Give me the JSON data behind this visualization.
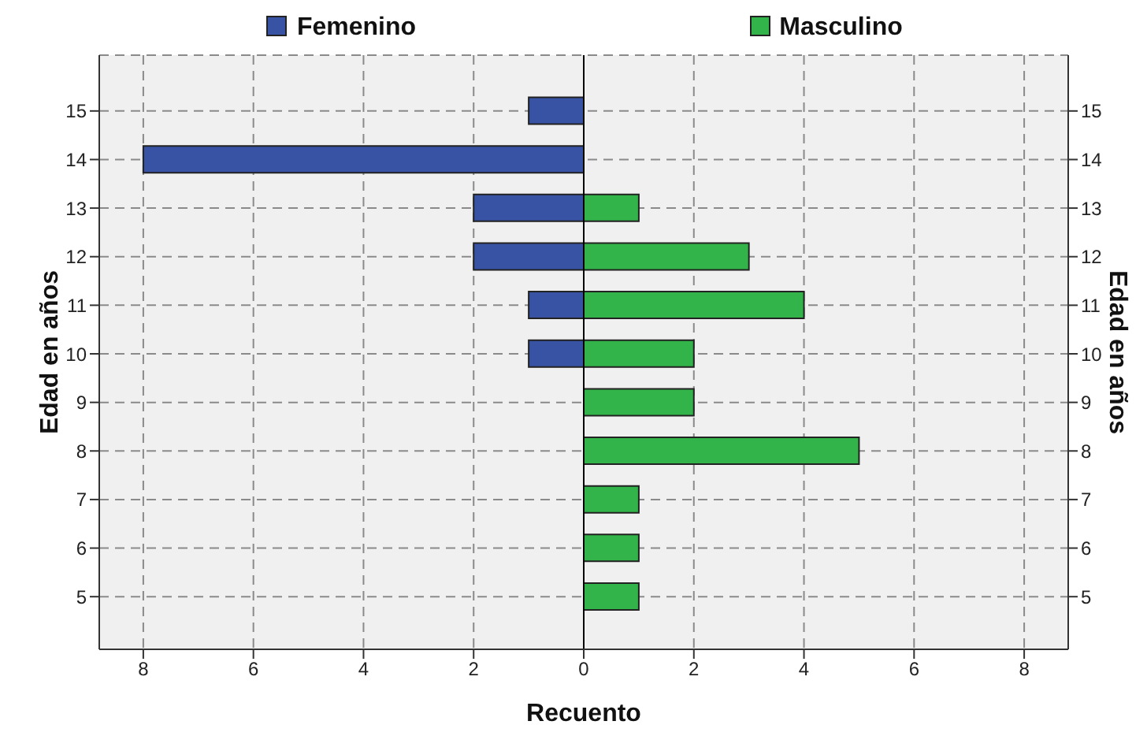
{
  "chart_data": {
    "type": "bar",
    "orientation": "horizontal",
    "xlabel": "Recuento",
    "ylabel": "Edad en años",
    "y2label": "Edad en años",
    "categories": [
      "15",
      "14",
      "13",
      "12",
      "11",
      "10",
      "9",
      "8",
      "7",
      "6",
      "5"
    ],
    "series": [
      {
        "name": "Femenino",
        "color": "#3953a4",
        "values": [
          -1,
          -8,
          -2,
          -2,
          -1,
          -1,
          0,
          0,
          0,
          0,
          0
        ]
      },
      {
        "name": "Masculino",
        "color": "#33b44a",
        "values": [
          0,
          0,
          1,
          3,
          4,
          2,
          2,
          5,
          1,
          1,
          1
        ]
      }
    ],
    "xlim": [
      -8.8,
      8.8
    ],
    "xticks": [
      {
        "value": -8,
        "label": "8"
      },
      {
        "value": -6,
        "label": "6"
      },
      {
        "value": -4,
        "label": "4"
      },
      {
        "value": -2,
        "label": "2"
      },
      0,
      2,
      4,
      6,
      8
    ],
    "grid": true,
    "legend": "top"
  }
}
